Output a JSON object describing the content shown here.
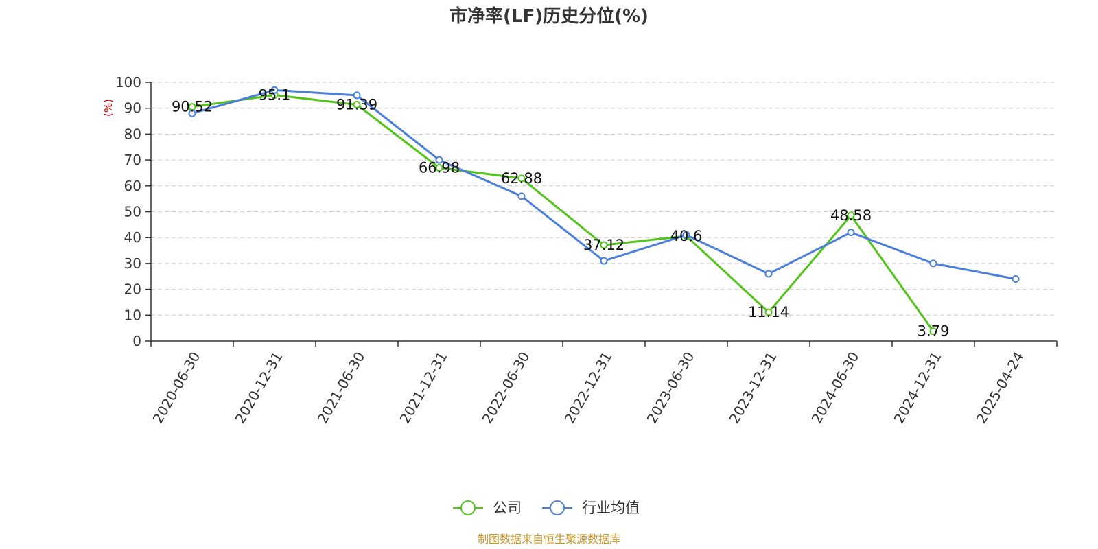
{
  "chart_data": {
    "type": "line",
    "title": "市净率(LF)历史分位(%)",
    "ylabel": "(%)",
    "ylim": [
      0,
      100
    ],
    "yticks": [
      0,
      10,
      20,
      30,
      40,
      50,
      60,
      70,
      80,
      90,
      100
    ],
    "grid": true,
    "legend_position": "bottom",
    "categories": [
      "2020-06-30",
      "2020-12-31",
      "2021-06-30",
      "2021-12-31",
      "2022-06-30",
      "2022-12-31",
      "2023-06-30",
      "2023-12-31",
      "2024-06-30",
      "2024-12-31",
      "2025-04-24"
    ],
    "series": [
      {
        "name": "公司",
        "color": "#52c41a",
        "values": [
          90.52,
          95.1,
          91.39,
          66.98,
          62.88,
          37.12,
          40.6,
          11.14,
          48.58,
          3.79,
          null
        ],
        "labels": [
          "90.52",
          "95.1",
          "91.39",
          "66.98",
          "62.88",
          "37.12",
          "40.6",
          "11.14",
          "48.58",
          "3.79",
          null
        ]
      },
      {
        "name": "行业均值",
        "color": "#4a7fdc",
        "values": [
          88,
          97,
          95,
          70,
          56,
          31,
          41,
          26,
          42,
          30,
          24
        ]
      }
    ],
    "source": "制图数据来自恒生聚源数据库",
    "source_color": "#c8962b",
    "ylabel_color": "#e00000"
  }
}
